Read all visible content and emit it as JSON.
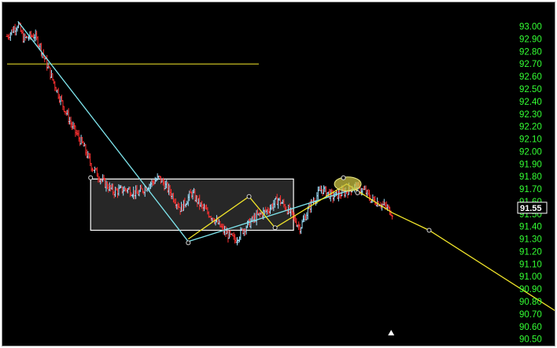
{
  "chart_data": {
    "type": "candlestick",
    "title": "",
    "xlabel": "",
    "ylabel": "",
    "ylim": [
      90.46,
      93.18
    ],
    "y_ticks": [
      "93.00",
      "92.90",
      "92.80",
      "92.70",
      "92.60",
      "92.50",
      "92.40",
      "92.30",
      "92.20",
      "92.10",
      "92.00",
      "91.90",
      "91.80",
      "91.70",
      "91.60",
      "91.50",
      "91.40",
      "91.30",
      "91.20",
      "91.10",
      "91.00",
      "90.90",
      "90.80",
      "90.70",
      "90.60",
      "90.50"
    ],
    "last_price_label": "91.55",
    "grid": false,
    "colors": {
      "background": "#000000",
      "tick_label": "#33ff33",
      "up_bar": "#9fe3ff",
      "down_bar": "#ff3030",
      "trend_line_cyan": "#7fe6ee",
      "trend_line_yellow": "#f2e62a",
      "range_box_fill": "#2e2e2e",
      "range_box_stroke": "#ffffff",
      "highlight_ellipse": "#c8c040",
      "last_price_box": "#000000"
    },
    "price_path": [
      [
        0,
        92.92
      ],
      [
        10,
        93.02
      ],
      [
        15,
        92.9
      ],
      [
        25,
        92.93
      ],
      [
        30,
        92.85
      ],
      [
        40,
        92.62
      ],
      [
        50,
        92.4
      ],
      [
        60,
        92.2
      ],
      [
        70,
        92.05
      ],
      [
        78,
        91.88
      ],
      [
        88,
        91.76
      ],
      [
        98,
        91.68
      ],
      [
        110,
        91.7
      ],
      [
        120,
        91.66
      ],
      [
        130,
        91.73
      ],
      [
        140,
        91.79
      ],
      [
        150,
        91.68
      ],
      [
        160,
        91.54
      ],
      [
        170,
        91.67
      ],
      [
        180,
        91.55
      ],
      [
        190,
        91.47
      ],
      [
        200,
        91.36
      ],
      [
        210,
        91.29
      ],
      [
        220,
        91.4
      ],
      [
        230,
        91.48
      ],
      [
        240,
        91.53
      ],
      [
        250,
        91.62
      ],
      [
        260,
        91.52
      ],
      [
        270,
        91.39
      ],
      [
        280,
        91.58
      ],
      [
        290,
        91.7
      ],
      [
        300,
        91.64
      ],
      [
        310,
        91.67
      ],
      [
        320,
        91.72
      ],
      [
        330,
        91.68
      ],
      [
        335,
        91.62
      ],
      [
        343,
        91.59
      ],
      [
        350,
        91.55
      ],
      [
        355,
        91.51
      ]
    ],
    "annotations": {
      "horizontal_line": {
        "y": 92.7,
        "x_start": 0,
        "x_end": 232
      },
      "range_box": {
        "x_start": 77,
        "x_end": 264,
        "y_top": 91.78,
        "y_bottom": 91.37
      },
      "lines": [
        {
          "color": "trend_line_cyan",
          "points": [
            [
              10,
              93.04
            ],
            [
              167,
              91.28
            ]
          ]
        },
        {
          "color": "trend_line_cyan",
          "points": [
            [
              167,
              91.28
            ],
            [
              323,
              91.71
            ]
          ]
        },
        {
          "color": "trend_line_yellow",
          "points": [
            [
              167,
              91.3
            ],
            [
              223,
              91.64
            ],
            [
              247,
              91.39
            ],
            [
              313,
              91.74
            ],
            [
              355,
              91.51
            ],
            [
              389,
              91.37
            ],
            [
              537,
              90.55
            ]
          ]
        }
      ],
      "handles": [
        [
          167,
          91.27
        ],
        [
          223,
          91.64
        ],
        [
          247,
          91.39
        ],
        [
          310,
          91.79
        ],
        [
          323,
          91.67
        ],
        [
          77,
          91.79
        ],
        [
          389,
          91.37
        ],
        [
          537,
          90.55
        ]
      ],
      "highlight_ellipse": {
        "x": 314,
        "y": 91.74
      },
      "marker_triangle": {
        "x": 354
      }
    }
  }
}
